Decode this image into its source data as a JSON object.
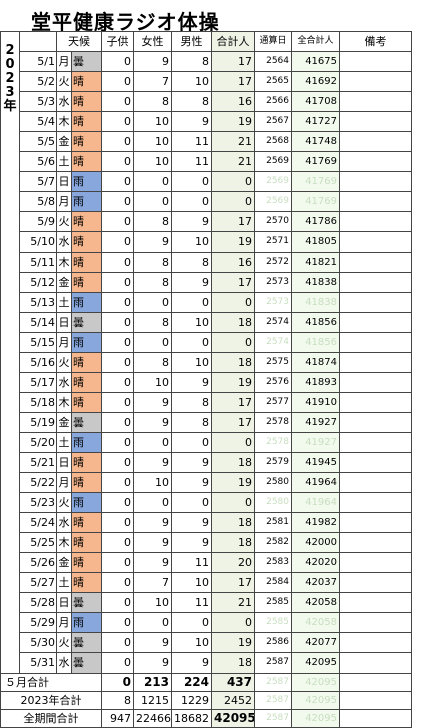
{
  "title": "堂平健康ラジオ体操",
  "year_label": [
    "2",
    "0",
    "2",
    "3",
    "年"
  ],
  "headers": {
    "weather": "天候",
    "children": "子供",
    "women": "女性",
    "men": "男性",
    "total": "合計人",
    "running_days": "通算日",
    "running_total": "全合計人",
    "notes": "備考"
  },
  "rows": [
    {
      "date": "5/1",
      "dow": "月",
      "wx": "曇",
      "kind": "kumori",
      "c": "0",
      "w": "9",
      "m": "8",
      "t": "17",
      "rd": "2564",
      "rt": "41675",
      "faded": false
    },
    {
      "date": "5/2",
      "dow": "火",
      "wx": "晴",
      "kind": "hare",
      "c": "0",
      "w": "7",
      "m": "10",
      "t": "17",
      "rd": "2565",
      "rt": "41692",
      "faded": false
    },
    {
      "date": "5/3",
      "dow": "水",
      "wx": "晴",
      "kind": "hare",
      "c": "0",
      "w": "8",
      "m": "8",
      "t": "16",
      "rd": "2566",
      "rt": "41708",
      "faded": false
    },
    {
      "date": "5/4",
      "dow": "木",
      "wx": "晴",
      "kind": "hare",
      "c": "0",
      "w": "10",
      "m": "9",
      "t": "19",
      "rd": "2567",
      "rt": "41727",
      "faded": false
    },
    {
      "date": "5/5",
      "dow": "金",
      "wx": "晴",
      "kind": "hare",
      "c": "0",
      "w": "10",
      "m": "11",
      "t": "21",
      "rd": "2568",
      "rt": "41748",
      "faded": false
    },
    {
      "date": "5/6",
      "dow": "土",
      "wx": "晴",
      "kind": "hare",
      "c": "0",
      "w": "10",
      "m": "11",
      "t": "21",
      "rd": "2569",
      "rt": "41769",
      "faded": false
    },
    {
      "date": "5/7",
      "dow": "日",
      "wx": "雨",
      "kind": "ame",
      "c": "0",
      "w": "0",
      "m": "0",
      "t": "0",
      "rd": "2569",
      "rt": "41769",
      "faded": true
    },
    {
      "date": "5/8",
      "dow": "月",
      "wx": "雨",
      "kind": "ame",
      "c": "0",
      "w": "0",
      "m": "0",
      "t": "0",
      "rd": "2569",
      "rt": "41769",
      "faded": true
    },
    {
      "date": "5/9",
      "dow": "火",
      "wx": "晴",
      "kind": "hare",
      "c": "0",
      "w": "8",
      "m": "9",
      "t": "17",
      "rd": "2570",
      "rt": "41786",
      "faded": false
    },
    {
      "date": "5/10",
      "dow": "水",
      "wx": "晴",
      "kind": "hare",
      "c": "0",
      "w": "9",
      "m": "10",
      "t": "19",
      "rd": "2571",
      "rt": "41805",
      "faded": false
    },
    {
      "date": "5/11",
      "dow": "木",
      "wx": "晴",
      "kind": "hare",
      "c": "0",
      "w": "8",
      "m": "8",
      "t": "16",
      "rd": "2572",
      "rt": "41821",
      "faded": false
    },
    {
      "date": "5/12",
      "dow": "金",
      "wx": "晴",
      "kind": "hare",
      "c": "0",
      "w": "8",
      "m": "9",
      "t": "17",
      "rd": "2573",
      "rt": "41838",
      "faded": false
    },
    {
      "date": "5/13",
      "dow": "土",
      "wx": "雨",
      "kind": "ame",
      "c": "0",
      "w": "0",
      "m": "0",
      "t": "0",
      "rd": "2573",
      "rt": "41838",
      "faded": true
    },
    {
      "date": "5/14",
      "dow": "日",
      "wx": "曇",
      "kind": "kumori",
      "c": "0",
      "w": "8",
      "m": "10",
      "t": "18",
      "rd": "2574",
      "rt": "41856",
      "faded": false
    },
    {
      "date": "5/15",
      "dow": "月",
      "wx": "雨",
      "kind": "ame",
      "c": "0",
      "w": "0",
      "m": "0",
      "t": "0",
      "rd": "2574",
      "rt": "41856",
      "faded": true
    },
    {
      "date": "5/16",
      "dow": "火",
      "wx": "晴",
      "kind": "hare",
      "c": "0",
      "w": "8",
      "m": "10",
      "t": "18",
      "rd": "2575",
      "rt": "41874",
      "faded": false
    },
    {
      "date": "5/17",
      "dow": "水",
      "wx": "晴",
      "kind": "hare",
      "c": "0",
      "w": "10",
      "m": "9",
      "t": "19",
      "rd": "2576",
      "rt": "41893",
      "faded": false
    },
    {
      "date": "5/18",
      "dow": "木",
      "wx": "晴",
      "kind": "hare",
      "c": "0",
      "w": "9",
      "m": "8",
      "t": "17",
      "rd": "2577",
      "rt": "41910",
      "faded": false
    },
    {
      "date": "5/19",
      "dow": "金",
      "wx": "曇",
      "kind": "kumori",
      "c": "0",
      "w": "9",
      "m": "8",
      "t": "17",
      "rd": "2578",
      "rt": "41927",
      "faded": false
    },
    {
      "date": "5/20",
      "dow": "土",
      "wx": "雨",
      "kind": "ame",
      "c": "0",
      "w": "0",
      "m": "0",
      "t": "0",
      "rd": "2578",
      "rt": "41927",
      "faded": true
    },
    {
      "date": "5/21",
      "dow": "日",
      "wx": "晴",
      "kind": "hare",
      "c": "0",
      "w": "9",
      "m": "9",
      "t": "18",
      "rd": "2579",
      "rt": "41945",
      "faded": false
    },
    {
      "date": "5/22",
      "dow": "月",
      "wx": "晴",
      "kind": "hare",
      "c": "0",
      "w": "10",
      "m": "9",
      "t": "19",
      "rd": "2580",
      "rt": "41964",
      "faded": false
    },
    {
      "date": "5/23",
      "dow": "火",
      "wx": "雨",
      "kind": "ame",
      "c": "0",
      "w": "0",
      "m": "0",
      "t": "0",
      "rd": "2580",
      "rt": "41964",
      "faded": true
    },
    {
      "date": "5/24",
      "dow": "水",
      "wx": "晴",
      "kind": "hare",
      "c": "0",
      "w": "9",
      "m": "9",
      "t": "18",
      "rd": "2581",
      "rt": "41982",
      "faded": false
    },
    {
      "date": "5/25",
      "dow": "木",
      "wx": "晴",
      "kind": "hare",
      "c": "0",
      "w": "9",
      "m": "9",
      "t": "18",
      "rd": "2582",
      "rt": "42000",
      "faded": false
    },
    {
      "date": "5/26",
      "dow": "金",
      "wx": "晴",
      "kind": "hare",
      "c": "0",
      "w": "9",
      "m": "11",
      "t": "20",
      "rd": "2583",
      "rt": "42020",
      "faded": false
    },
    {
      "date": "5/27",
      "dow": "土",
      "wx": "晴",
      "kind": "hare",
      "c": "0",
      "w": "7",
      "m": "10",
      "t": "17",
      "rd": "2584",
      "rt": "42037",
      "faded": false
    },
    {
      "date": "5/28",
      "dow": "日",
      "wx": "曇",
      "kind": "kumori",
      "c": "0",
      "w": "10",
      "m": "11",
      "t": "21",
      "rd": "2585",
      "rt": "42058",
      "faded": false
    },
    {
      "date": "5/29",
      "dow": "月",
      "wx": "雨",
      "kind": "ame",
      "c": "0",
      "w": "0",
      "m": "0",
      "t": "0",
      "rd": "2585",
      "rt": "42058",
      "faded": true
    },
    {
      "date": "5/30",
      "dow": "火",
      "wx": "曇",
      "kind": "kumori",
      "c": "0",
      "w": "9",
      "m": "10",
      "t": "19",
      "rd": "2586",
      "rt": "42077",
      "faded": false
    },
    {
      "date": "5/31",
      "dow": "水",
      "wx": "曇",
      "kind": "kumori",
      "c": "0",
      "w": "9",
      "m": "9",
      "t": "18",
      "rd": "2587",
      "rt": "42095",
      "faded": false
    }
  ],
  "summary": [
    {
      "label": "５月合計",
      "c": "0",
      "w": "213",
      "m": "224",
      "t": "437",
      "rd": "2587",
      "rt": "42095",
      "bold": true
    },
    {
      "label": "2023年合計",
      "c": "8",
      "w": "1215",
      "m": "1229",
      "t": "2452",
      "rd": "2587",
      "rt": "42095",
      "bold": false
    },
    {
      "label": "全期間合計",
      "c": "947",
      "w": "22466",
      "m": "18682",
      "t": "42095",
      "rd": "2587",
      "rt": "42095",
      "bold": false,
      "total_bold": true
    }
  ],
  "colors": {
    "hare": "#f7b78e",
    "ame": "#87a7dd",
    "kumori": "#c8c8c8",
    "total_bg": "#eef3e6",
    "cumulative_bg": "#f2f9ed",
    "faded_text": "#c8dec0"
  }
}
